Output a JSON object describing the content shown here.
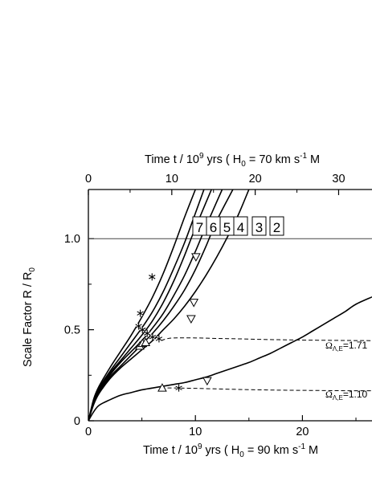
{
  "chart_data": {
    "type": "line",
    "top_axis": {
      "label_parts": [
        "Time t / 10",
        "9",
        " yrs ( H",
        "0",
        " =  70 km s",
        "-1",
        " M"
      ],
      "ticks": [
        0,
        10,
        20,
        30
      ],
      "range": [
        0,
        34
      ]
    },
    "bottom_axis": {
      "label_parts": [
        "Time t / 10",
        "9",
        " yrs ( H",
        "0",
        " =  90 km s",
        "-1",
        " M"
      ],
      "ticks": [
        0,
        10,
        20
      ],
      "range": [
        0,
        26.5
      ]
    },
    "y_axis": {
      "label_parts": [
        "Scale Factor R / R",
        "0"
      ],
      "tick_labels": [
        "0",
        "0.5",
        "1.0"
      ],
      "ticks": [
        0,
        0.5,
        1.0
      ],
      "range": [
        0,
        1.27
      ]
    },
    "reference_line": {
      "y": 1.0
    },
    "curve_numbers": [
      "7",
      "6",
      "5",
      "4",
      "3",
      "2"
    ],
    "omega_labels": [
      {
        "symbol": "Ω",
        "sub": "Λ,E",
        "value": "=1.71"
      },
      {
        "symbol": "Ω",
        "sub": "Λ,E",
        "value": "=1.10"
      }
    ],
    "series": [
      {
        "values": [
          [
            0,
            0
          ],
          [
            0.5,
            0.12
          ],
          [
            1,
            0.19
          ],
          [
            2,
            0.29
          ],
          [
            3,
            0.38
          ],
          [
            4,
            0.47
          ],
          [
            5,
            0.57
          ],
          [
            6,
            0.68
          ],
          [
            7,
            0.81
          ],
          [
            8,
            0.96
          ],
          [
            9,
            1.12
          ],
          [
            10,
            1.27
          ]
        ]
      },
      {
        "values": [
          [
            0,
            0
          ],
          [
            0.5,
            0.11
          ],
          [
            1,
            0.18
          ],
          [
            2,
            0.27
          ],
          [
            3,
            0.35
          ],
          [
            4,
            0.43
          ],
          [
            5,
            0.51
          ],
          [
            6,
            0.6
          ],
          [
            7,
            0.71
          ],
          [
            8,
            0.84
          ],
          [
            9,
            0.98
          ],
          [
            10,
            1.14
          ],
          [
            10.8,
            1.27
          ]
        ]
      },
      {
        "values": [
          [
            0,
            0
          ],
          [
            0.5,
            0.1
          ],
          [
            1,
            0.17
          ],
          [
            2,
            0.26
          ],
          [
            3,
            0.33
          ],
          [
            4,
            0.4
          ],
          [
            5,
            0.47
          ],
          [
            6,
            0.55
          ],
          [
            7,
            0.65
          ],
          [
            8,
            0.77
          ],
          [
            9,
            0.91
          ],
          [
            10,
            1.06
          ],
          [
            11.5,
            1.27
          ]
        ]
      },
      {
        "values": [
          [
            0,
            0
          ],
          [
            0.5,
            0.1
          ],
          [
            1,
            0.16
          ],
          [
            2,
            0.25
          ],
          [
            3,
            0.32
          ],
          [
            4,
            0.38
          ],
          [
            5,
            0.44
          ],
          [
            6,
            0.51
          ],
          [
            7,
            0.59
          ],
          [
            8,
            0.69
          ],
          [
            9,
            0.8
          ],
          [
            10,
            0.93
          ],
          [
            11,
            1.07
          ],
          [
            12.5,
            1.27
          ]
        ]
      },
      {
        "values": [
          [
            0,
            0
          ],
          [
            0.5,
            0.1
          ],
          [
            1,
            0.16
          ],
          [
            2,
            0.24
          ],
          [
            3,
            0.3
          ],
          [
            4,
            0.36
          ],
          [
            5,
            0.42
          ],
          [
            6,
            0.48
          ],
          [
            7,
            0.55
          ],
          [
            8,
            0.63
          ],
          [
            9,
            0.72
          ],
          [
            10,
            0.83
          ],
          [
            11,
            0.96
          ],
          [
            12,
            1.1
          ],
          [
            13.5,
            1.27
          ]
        ]
      },
      {
        "values": [
          [
            0,
            0
          ],
          [
            0.5,
            0.09
          ],
          [
            1,
            0.15
          ],
          [
            2,
            0.23
          ],
          [
            3,
            0.29
          ],
          [
            4,
            0.34
          ],
          [
            5,
            0.39
          ],
          [
            6,
            0.44
          ],
          [
            7,
            0.5
          ],
          [
            8,
            0.56
          ],
          [
            9,
            0.63
          ],
          [
            10,
            0.71
          ],
          [
            11,
            0.8
          ],
          [
            12,
            0.9
          ],
          [
            13,
            1.01
          ],
          [
            14,
            1.13
          ],
          [
            15,
            1.27
          ]
        ]
      },
      {
        "values": [
          [
            0,
            0
          ],
          [
            0.5,
            0.05
          ],
          [
            1,
            0.085
          ],
          [
            2,
            0.115
          ],
          [
            3,
            0.14
          ],
          [
            4,
            0.155
          ],
          [
            5,
            0.17
          ],
          [
            6,
            0.18
          ],
          [
            7,
            0.19
          ],
          [
            8,
            0.2
          ],
          [
            9,
            0.21
          ],
          [
            10,
            0.225
          ],
          [
            11,
            0.24
          ],
          [
            12,
            0.26
          ],
          [
            13,
            0.28
          ],
          [
            14,
            0.3
          ],
          [
            15,
            0.32
          ],
          [
            16,
            0.345
          ],
          [
            17,
            0.37
          ],
          [
            18,
            0.4
          ],
          [
            19,
            0.43
          ],
          [
            20,
            0.46
          ],
          [
            21,
            0.495
          ],
          [
            22,
            0.53
          ],
          [
            23,
            0.565
          ],
          [
            24,
            0.6
          ],
          [
            25,
            0.64
          ],
          [
            26.5,
            0.68
          ]
        ]
      }
    ],
    "dashed_series": [
      {
        "values": [
          [
            6.8,
            0.44
          ],
          [
            7.3,
            0.45
          ],
          [
            8,
            0.455
          ],
          [
            10,
            0.455
          ],
          [
            12,
            0.452
          ],
          [
            14,
            0.45
          ],
          [
            16,
            0.447
          ],
          [
            18,
            0.445
          ],
          [
            20,
            0.443
          ],
          [
            22,
            0.442
          ],
          [
            24,
            0.441
          ],
          [
            26.5,
            0.44
          ]
        ]
      },
      {
        "values": [
          [
            6.8,
            0.18
          ],
          [
            8,
            0.18
          ],
          [
            10,
            0.178
          ],
          [
            12,
            0.175
          ],
          [
            14,
            0.172
          ],
          [
            16,
            0.17
          ],
          [
            18,
            0.168
          ],
          [
            20,
            0.167
          ],
          [
            22,
            0.166
          ],
          [
            24,
            0.165
          ],
          [
            26.5,
            0.165
          ]
        ]
      }
    ],
    "markers": {
      "asterisk": [
        [
          5.95,
          0.79
        ],
        [
          4.85,
          0.59
        ],
        [
          4.7,
          0.52
        ],
        [
          5.05,
          0.5
        ],
        [
          5.5,
          0.48
        ],
        [
          6.0,
          0.46
        ],
        [
          6.6,
          0.45
        ],
        [
          8.45,
          0.18
        ]
      ],
      "triangle_up": [
        [
          4.8,
          0.41
        ],
        [
          5.05,
          0.425
        ],
        [
          5.35,
          0.43
        ],
        [
          6.9,
          0.18
        ]
      ],
      "triangle_down": [
        [
          10.05,
          0.9
        ],
        [
          9.85,
          0.65
        ],
        [
          9.6,
          0.56
        ],
        [
          11.1,
          0.22
        ]
      ]
    }
  }
}
